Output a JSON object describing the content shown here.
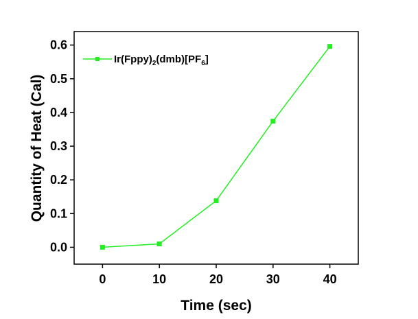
{
  "chart_data": {
    "type": "line",
    "xlabel": "Time (sec)",
    "ylabel": "Quantity of Heat (Cal)",
    "xlim": [
      -5,
      45
    ],
    "ylim": [
      -0.05,
      0.64
    ],
    "xticks": [
      0,
      10,
      20,
      30,
      40
    ],
    "yticks": [
      0.0,
      0.1,
      0.2,
      0.3,
      0.4,
      0.5,
      0.6
    ],
    "xtick_labels": [
      "0",
      "10",
      "20",
      "30",
      "40"
    ],
    "ytick_labels": [
      "0.0",
      "0.1",
      "0.2",
      "0.3",
      "0.4",
      "0.5",
      "0.6"
    ],
    "grid": false,
    "legend_position": "top-left",
    "series": [
      {
        "name_parts": {
          "a": "Ir(Fppy)",
          "sub1": "2",
          "b": "(dmb)[PF",
          "sub2": "6",
          "c": "]"
        },
        "color": "#22ee22",
        "marker": "square",
        "x": [
          0,
          10,
          20,
          30,
          40
        ],
        "y": [
          0.0,
          0.01,
          0.138,
          0.374,
          0.596
        ]
      }
    ]
  }
}
